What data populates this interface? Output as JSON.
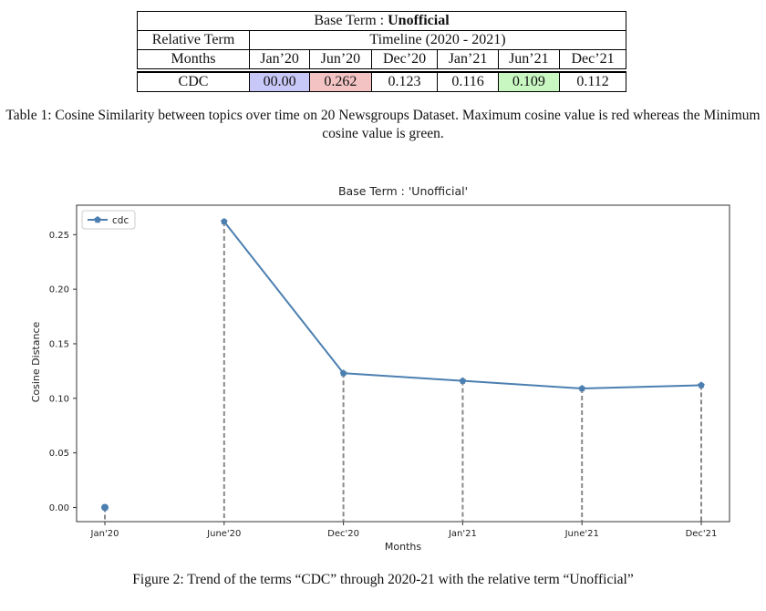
{
  "table": {
    "title_prefix": "Base Term : ",
    "title_term": "Unofficial",
    "relative_label": "Relative Term",
    "timeline_label": "Timeline (2020 - 2021)",
    "months_label": "Months",
    "months": [
      "Jan’20",
      "Jun’20",
      "Dec’20",
      "Jan’21",
      "Jun’21",
      "Dec’21"
    ],
    "row_label": "CDC",
    "values": [
      "00.00",
      "0.262",
      "0.123",
      "0.116",
      "0.109",
      "0.112"
    ],
    "highlight_colors": {
      "blue": "#c8c8f8",
      "red": "#f3c3c3",
      "green": "#c8f7c2"
    }
  },
  "table_caption": "Table 1: Cosine Similarity between topics over time on 20 Newsgroups Dataset. Maximum cosine value is red whereas the Minimum cosine value is green.",
  "figure_caption": "Figure 2: Trend of the terms “CDC” through 2020-21 with the relative term “Unofficial”",
  "chart_data": {
    "type": "line",
    "title": "Base Term : 'Unofficial'",
    "xlabel": "Months",
    "ylabel": "Cosine Distance",
    "categories": [
      "Jan'20",
      "June'20",
      "Dec'20",
      "Jan'21",
      "June'21",
      "Dec'21"
    ],
    "series": [
      {
        "name": "cdc",
        "values": [
          0.0,
          0.262,
          0.123,
          0.116,
          0.109,
          0.112
        ],
        "color": "#4c7fb0"
      }
    ],
    "ylim": [
      -0.013,
      0.277
    ],
    "yticks": [
      "0.00",
      "0.05",
      "0.10",
      "0.15",
      "0.20",
      "0.25"
    ],
    "ytick_values": [
      0.0,
      0.05,
      0.1,
      0.15,
      0.2,
      0.25
    ],
    "grid": false,
    "legend": "top-left",
    "stem_color": "#888888"
  }
}
